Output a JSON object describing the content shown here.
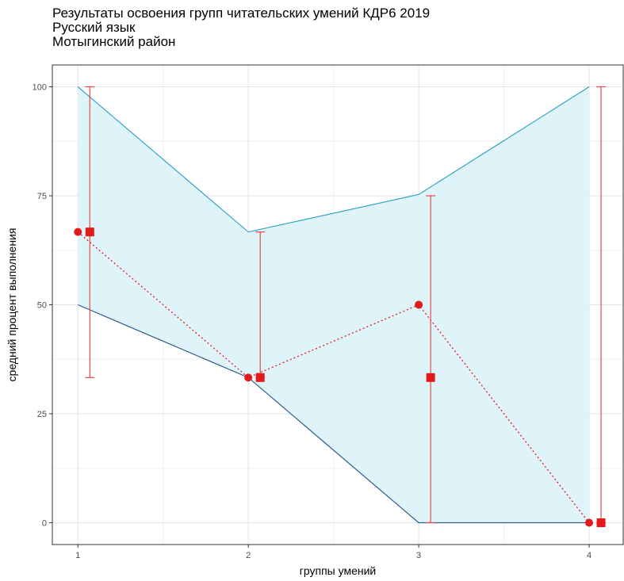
{
  "chart_data": {
    "type": "line",
    "title": "Результаты освоения групп читательских умений КДР6 2019",
    "subtitle_1": "Русский язык",
    "subtitle_2": "Мотыгинский район",
    "xlabel": "группы умений",
    "ylabel": "средний процент выполнения",
    "x": [
      1,
      2,
      3,
      4
    ],
    "x_tick_labels": [
      "1",
      "2",
      "3",
      "4"
    ],
    "y_ticks": [
      0,
      25,
      50,
      75,
      100
    ],
    "y_tick_labels": [
      "0",
      "25",
      "50",
      "75",
      "100"
    ],
    "xlim": [
      0.85,
      4.2
    ],
    "ylim": [
      -5,
      105
    ],
    "grid": true,
    "band": {
      "upper": [
        100,
        66.7,
        75.3,
        100
      ],
      "lower": [
        50,
        33.3,
        0,
        0
      ]
    },
    "points_circle": [
      66.7,
      33.3,
      50,
      0
    ],
    "points_square": [
      66.7,
      33.3,
      33.3,
      0
    ],
    "errorbars": [
      {
        "x": 1.07,
        "low": 33.3,
        "high": 100
      },
      {
        "x": 2.07,
        "low": 33.3,
        "high": 66.7
      },
      {
        "x": 3.07,
        "low": 0,
        "high": 75
      },
      {
        "x": 4.07,
        "low": 0,
        "high": 100
      }
    ],
    "colors": {
      "band_fill": "#dff4f9",
      "upper_line": "#35a3c4",
      "lower_line": "#2f5c8a",
      "points": "#e31a1c",
      "errorbar": "#e8484a",
      "dotted_line": "#e31a1c"
    }
  }
}
